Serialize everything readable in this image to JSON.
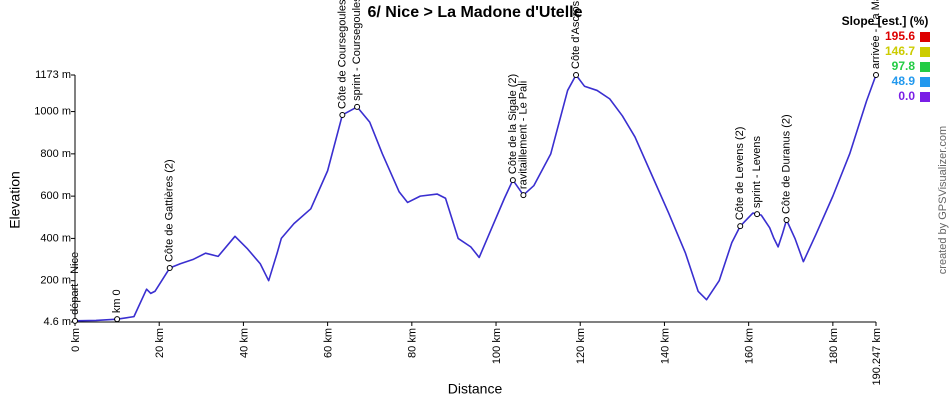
{
  "chart_data": {
    "type": "line",
    "title": "6/ Nice > La Madone d'Utelle",
    "x_label": "Distance",
    "y_label": "Elevation",
    "credit": "created by GPSVisualizer.com",
    "x": [
      0,
      5,
      10,
      14,
      17,
      18,
      19,
      22.5,
      25,
      28,
      31,
      34,
      38,
      41,
      44,
      46,
      48,
      49,
      52,
      56,
      60,
      63.5,
      67,
      70,
      73,
      77,
      79,
      82,
      86,
      88,
      91,
      94,
      96,
      99,
      102,
      104,
      106.5,
      109,
      113,
      117,
      119,
      121,
      124,
      127,
      130,
      133,
      137,
      141,
      145,
      148,
      150,
      153,
      156,
      158,
      161,
      163,
      165,
      166,
      167,
      168,
      169,
      171,
      173,
      176,
      180,
      184,
      188,
      190.247
    ],
    "series": [
      {
        "color": "#3a2fd0",
        "values": [
          10,
          12,
          18,
          30,
          160,
          140,
          150,
          260,
          280,
          300,
          330,
          315,
          410,
          350,
          280,
          200,
          330,
          400,
          470,
          540,
          720,
          984,
          1022,
          950,
          800,
          620,
          570,
          600,
          610,
          590,
          400,
          360,
          310,
          450,
          590,
          676,
          605,
          650,
          800,
          1100,
          1173,
          1120,
          1100,
          1060,
          980,
          880,
          700,
          520,
          330,
          150,
          110,
          200,
          380,
          458,
          520,
          510,
          450,
          400,
          360,
          420,
          487,
          400,
          290,
          420,
          600,
          800,
          1050,
          1173
        ]
      }
    ],
    "xlim": [
      0,
      190.247
    ],
    "ylim": [
      4.6,
      1173
    ],
    "xticks": [
      {
        "value": 0,
        "label": "0 km"
      },
      {
        "value": 20,
        "label": "20 km"
      },
      {
        "value": 40,
        "label": "40 km"
      },
      {
        "value": 60,
        "label": "60 km"
      },
      {
        "value": 80,
        "label": "80 km"
      },
      {
        "value": 100,
        "label": "100 km"
      },
      {
        "value": 120,
        "label": "120 km"
      },
      {
        "value": 140,
        "label": "140 km"
      },
      {
        "value": 160,
        "label": "160 km"
      },
      {
        "value": 180,
        "label": "180 km"
      },
      {
        "value": 190.247,
        "label": "190.247 km"
      }
    ],
    "yticks": [
      {
        "value": 4.6,
        "label": "4.6 m"
      },
      {
        "value": 200,
        "label": "200 m"
      },
      {
        "value": 400,
        "label": "400 m"
      },
      {
        "value": 600,
        "label": "600 m"
      },
      {
        "value": 800,
        "label": "800 m"
      },
      {
        "value": 1000,
        "label": "1000 m"
      },
      {
        "value": 1173,
        "label": "1173 m"
      }
    ],
    "grid": false,
    "annotations": [
      {
        "x": 0,
        "y": 10,
        "label": "départ - Nice"
      },
      {
        "x": 10,
        "y": 18,
        "label": "km 0"
      },
      {
        "x": 22.5,
        "y": 260,
        "label": "Côte de Gattières (2)"
      },
      {
        "x": 63.5,
        "y": 984,
        "label": "Côte de Coursegoules"
      },
      {
        "x": 67,
        "y": 1022,
        "label": "sprint - Coursegoules"
      },
      {
        "x": 104,
        "y": 676,
        "label": "Côte de la Sigale (2)"
      },
      {
        "x": 106.5,
        "y": 605,
        "label": "ravitaillement - Le Pali"
      },
      {
        "x": 119,
        "y": 1173,
        "label": "Côte d'Ascros"
      },
      {
        "x": 158,
        "y": 458,
        "label": "Côte de Levens (2)"
      },
      {
        "x": 162,
        "y": 515,
        "label": "sprint - Levens"
      },
      {
        "x": 169,
        "y": 487,
        "label": "Côte de Duranus (2)"
      },
      {
        "x": 190.247,
        "y": 1173,
        "label": "arrivée - La Madone d'Utelle"
      }
    ],
    "slope_legend": {
      "title": "Slope [est.] (%)",
      "values": [
        195.6,
        146.7,
        97.8,
        48.9,
        0
      ],
      "value_labels": [
        "195.6",
        "146.7",
        "97.8",
        "48.9",
        "0.0"
      ],
      "colors": [
        "#dd0000",
        "#cccc00",
        "#22cc44",
        "#2299ee",
        "#7a1ee6"
      ]
    }
  }
}
